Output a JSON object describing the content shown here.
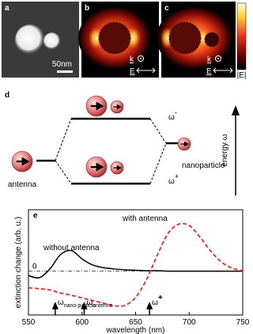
{
  "panels": {
    "a": {
      "label": "a",
      "scale": "50nm"
    },
    "b": {
      "label": "b",
      "k": "k",
      "E": "E"
    },
    "c": {
      "label": "c",
      "k": "k",
      "E": "E",
      "colorbar": "|E|"
    },
    "d": {
      "label": "d",
      "upper": {
        "symbol": "ω",
        "sup": "-"
      },
      "lower": {
        "symbol": "ω",
        "sup": "+"
      },
      "left": "antenna",
      "right": "nanoparticle",
      "axis": "energy ω"
    }
  },
  "chart_data": {
    "type": "line",
    "label": "e",
    "xlabel": "wavelength (nm)",
    "ylabel": "extinction change (arb. u.)",
    "x": [
      550,
      560,
      570,
      580,
      590,
      600,
      610,
      620,
      630,
      640,
      650,
      660,
      670,
      680,
      690,
      700,
      710,
      720,
      730,
      740,
      750
    ],
    "xlim": [
      550,
      750
    ],
    "xticks": [
      550,
      600,
      650,
      700,
      750
    ],
    "ylim": [
      -1,
      1.4
    ],
    "yticks": [
      0
    ],
    "series": [
      {
        "name": "without antenna",
        "color": "#000000",
        "dash": false,
        "values": [
          -0.1,
          -0.15,
          0.05,
          0.38,
          0.47,
          0.28,
          0.14,
          0.08,
          0.05,
          0.03,
          0.02,
          0.01,
          0.01,
          0,
          0,
          0,
          0,
          0,
          0,
          0,
          0
        ]
      },
      {
        "name": "with antenna",
        "color": "#e8262a",
        "dash": true,
        "values": [
          -0.38,
          -0.4,
          -0.43,
          -0.5,
          -0.55,
          -0.61,
          -0.67,
          -0.73,
          -0.79,
          -0.78,
          -0.6,
          -0.2,
          0.35,
          0.85,
          1.07,
          1.04,
          0.78,
          0.46,
          0.21,
          0.07,
          0.01
        ]
      }
    ],
    "annotations": [
      {
        "x": 575,
        "symbol": "ω",
        "sub": "nano-particle"
      },
      {
        "x": 602,
        "symbol": "ω",
        "sub": "antenna"
      },
      {
        "x": 663,
        "symbol": "ω",
        "sup": "+"
      }
    ]
  }
}
